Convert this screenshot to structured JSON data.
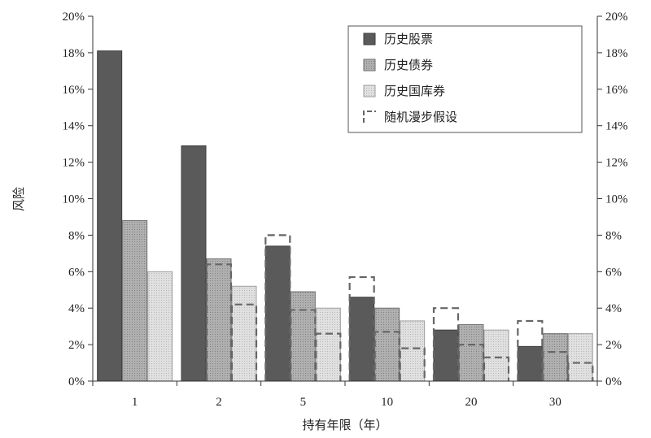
{
  "chart_data": {
    "type": "bar",
    "categories": [
      "1",
      "2",
      "5",
      "10",
      "20",
      "30"
    ],
    "series": [
      {
        "name": "历史股票",
        "values": [
          18.1,
          12.9,
          7.4,
          4.6,
          2.8,
          1.9
        ],
        "color": "#5a5a5a"
      },
      {
        "name": "历史债券",
        "values": [
          8.8,
          6.7,
          4.9,
          4.0,
          3.1,
          2.6
        ],
        "color": "#a9a9a9"
      },
      {
        "name": "历史国库券",
        "values": [
          6.0,
          5.2,
          4.0,
          3.3,
          2.8,
          2.6
        ],
        "color": "#dcdcdc"
      }
    ],
    "random_walk": {
      "name": "随机漫步假设",
      "values": [
        [
          null,
          null,
          null
        ],
        [
          null,
          6.4,
          4.2
        ],
        [
          8.0,
          3.9,
          2.6
        ],
        [
          5.7,
          2.7,
          1.8
        ],
        [
          4.0,
          2.0,
          1.3
        ],
        [
          3.3,
          1.6,
          1.0
        ]
      ]
    },
    "xlabel": "持有年限（年）",
    "ylabel": "风险",
    "ylim": [
      0,
      20
    ],
    "yticks": [
      "0%",
      "2%",
      "4%",
      "6%",
      "8%",
      "10%",
      "12%",
      "14%",
      "16%",
      "18%",
      "20%"
    ],
    "legend_position": "top-right",
    "grid": false
  }
}
